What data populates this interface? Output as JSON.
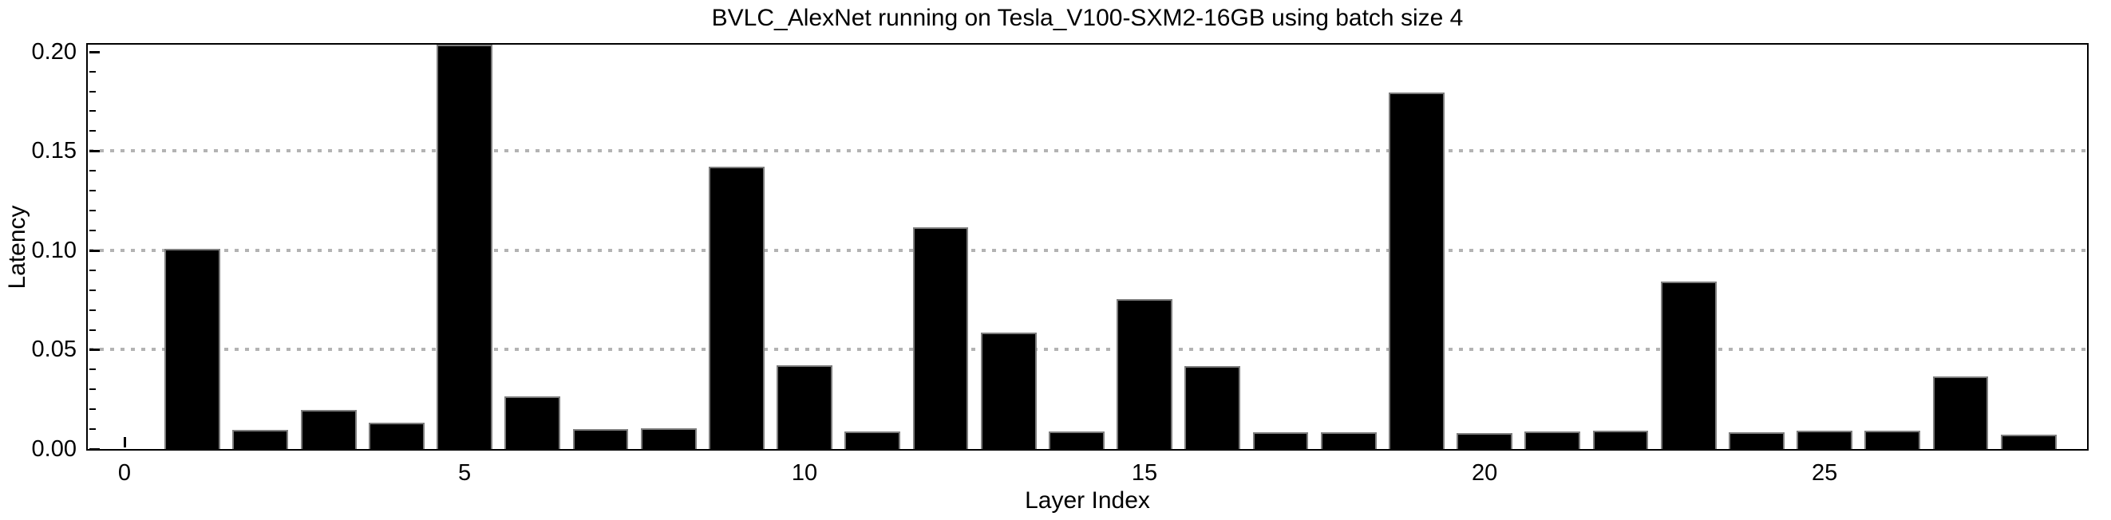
{
  "page": {
    "background": "#ffffff"
  },
  "chart_data": {
    "type": "bar",
    "title": "BVLC_AlexNet running on Tesla_V100-SXM2-16GB using batch size 4",
    "xlabel": "Layer Index",
    "ylabel": "Latency",
    "categories": [
      1,
      2,
      3,
      4,
      5,
      6,
      7,
      8,
      9,
      10,
      11,
      12,
      13,
      14,
      15,
      16,
      17,
      18,
      19,
      20,
      21,
      22,
      23,
      24,
      25,
      26,
      27,
      28
    ],
    "values": [
      0.1007,
      0.0097,
      0.0196,
      0.0131,
      0.2034,
      0.0263,
      0.0099,
      0.0105,
      0.142,
      0.0421,
      0.0087,
      0.1115,
      0.0588,
      0.0087,
      0.0756,
      0.0419,
      0.0084,
      0.0084,
      0.1795,
      0.0082,
      0.0087,
      0.0091,
      0.0842,
      0.0084,
      0.0091,
      0.0091,
      0.0367,
      0.0074
    ],
    "xlim": [
      -0.54,
      28.86
    ],
    "ylim": [
      0,
      0.2035
    ],
    "xticks": {
      "major": [
        0,
        5,
        10,
        15,
        20,
        25
      ],
      "labels": [
        "0",
        "5",
        "10",
        "15",
        "20",
        "25"
      ]
    },
    "yticks": {
      "major": [
        0,
        0.05,
        0.1,
        0.15,
        0.2
      ],
      "labels": [
        "0.00",
        "0.05",
        "0.10",
        "0.15",
        "0.20"
      ],
      "minor_step": 0.01
    },
    "grid": {
      "axis": "y",
      "values": [
        0.05,
        0.1,
        0.15
      ],
      "style": "dotted",
      "color": "#b3b3b3"
    },
    "bar_style": {
      "color": "#000000",
      "edge_color": "#7d7d7d",
      "width_fraction": 0.82
    },
    "axis_color": "#000000",
    "legend": "none"
  }
}
